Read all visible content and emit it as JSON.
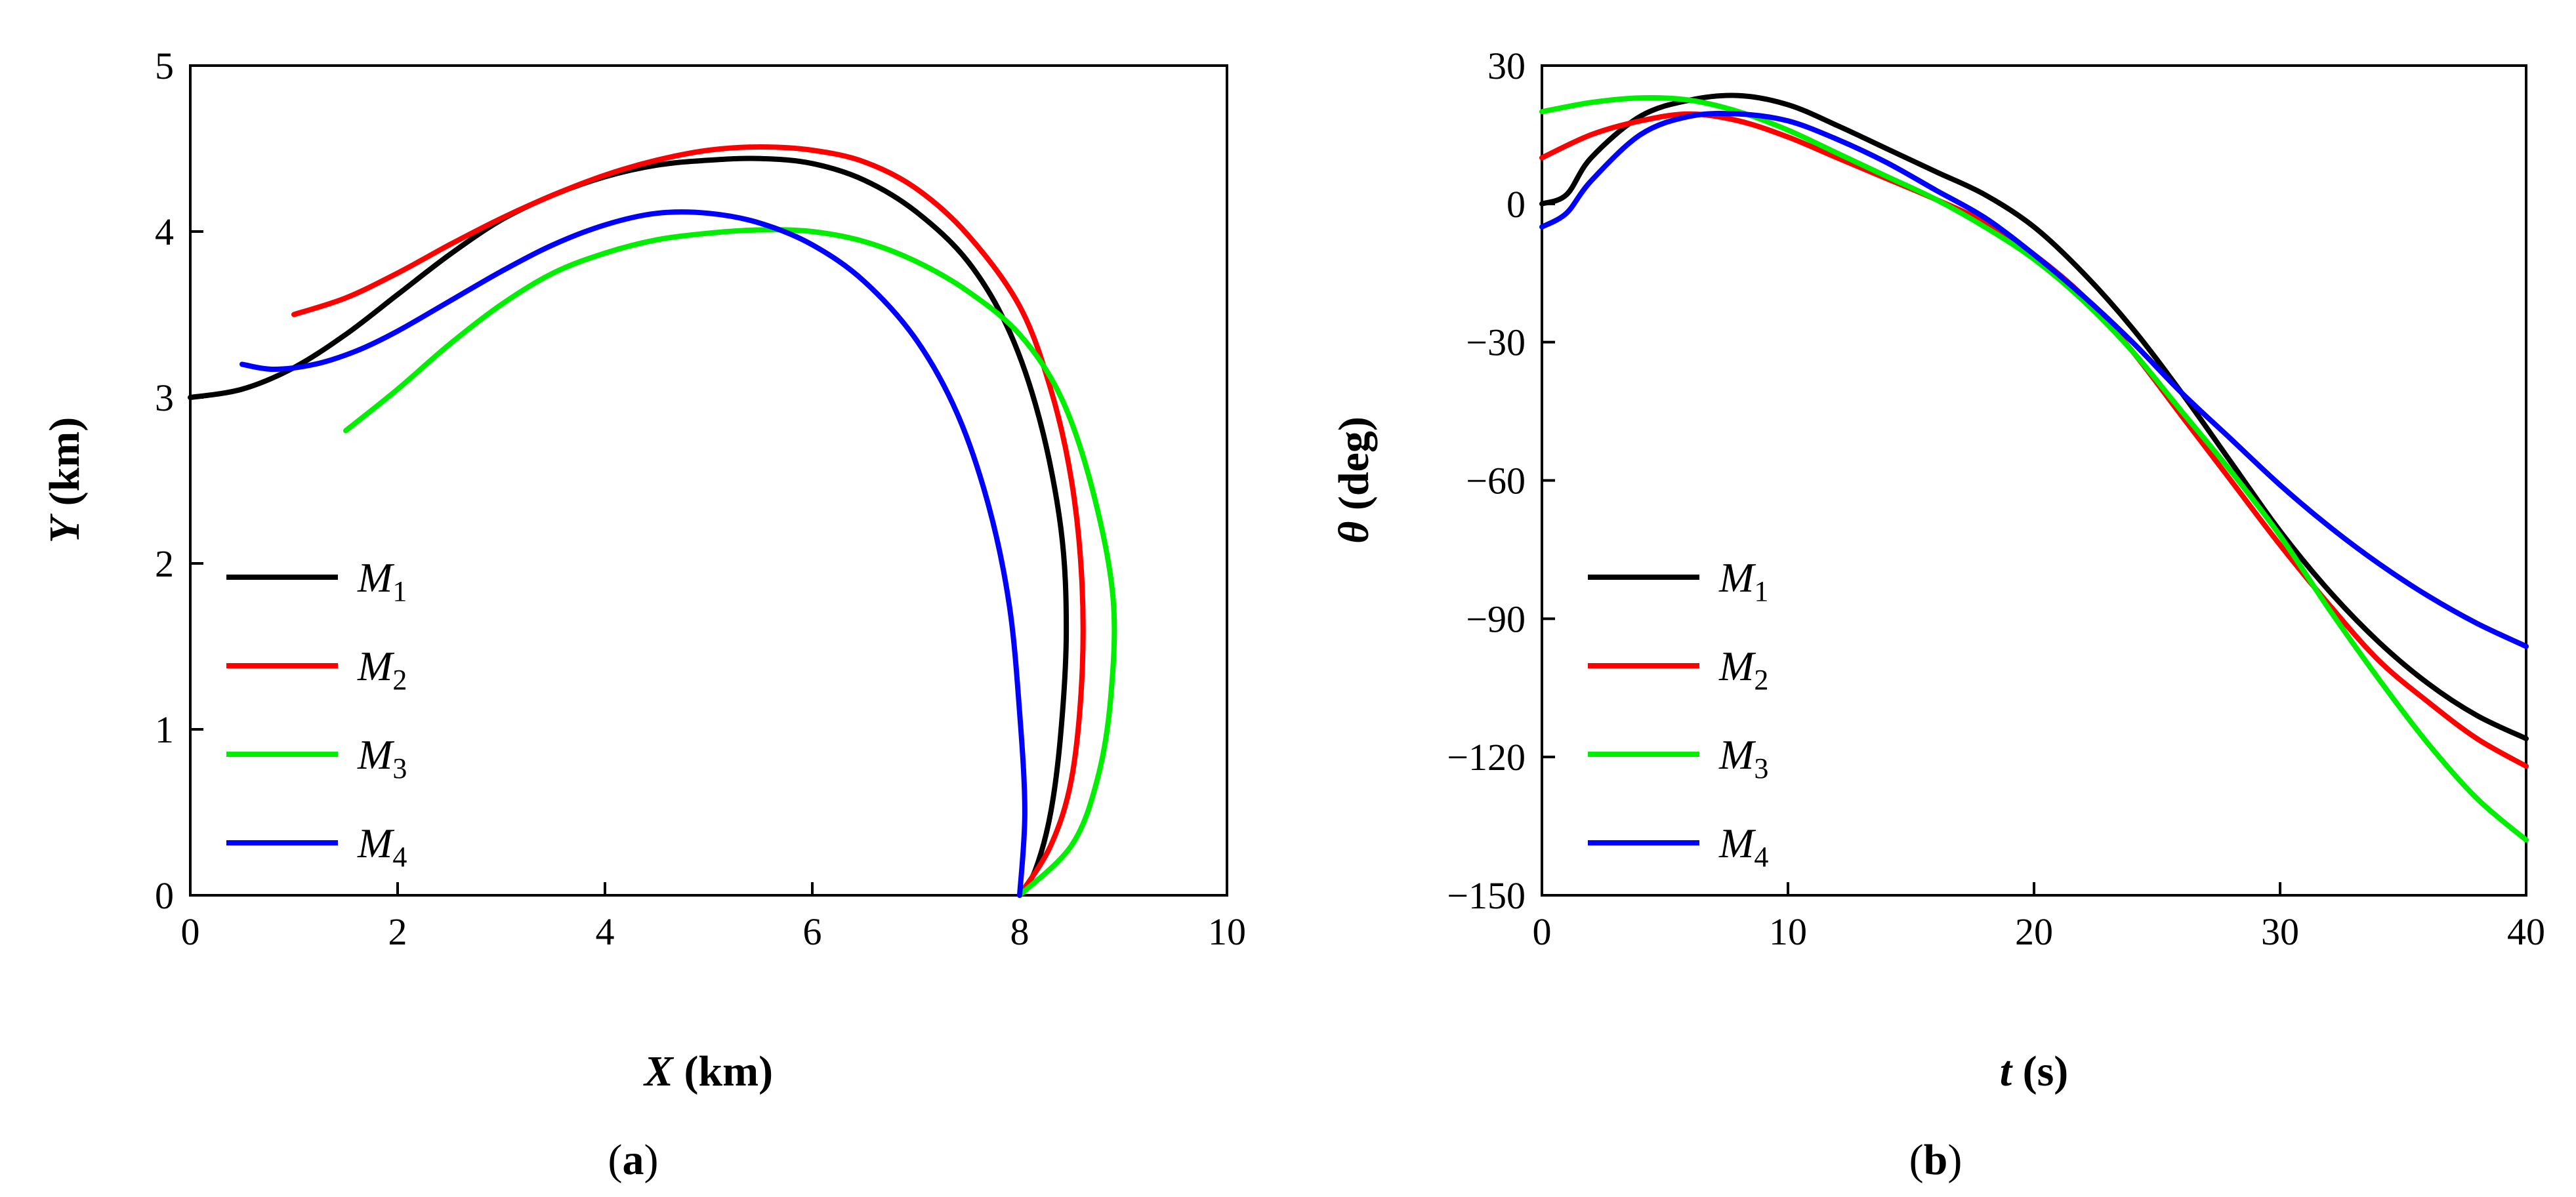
{
  "chart_data": [
    {
      "type": "line",
      "panel_label": "a",
      "xlabel": {
        "var": "X",
        "unit": " (km)"
      },
      "ylabel": {
        "var": "Y",
        "unit": " (km)"
      },
      "xlim": [
        0,
        10
      ],
      "ylim": [
        0,
        5
      ],
      "xticks": [
        0,
        2,
        4,
        6,
        8,
        10
      ],
      "yticks": [
        0,
        1,
        2,
        3,
        4,
        5
      ],
      "grid": false,
      "legend_position": "lower-left",
      "series": [
        {
          "name": "M",
          "sub": "1",
          "color": "#000000",
          "points": [
            [
              0,
              3.0
            ],
            [
              0.5,
              3.05
            ],
            [
              1.0,
              3.18
            ],
            [
              1.5,
              3.38
            ],
            [
              2.0,
              3.62
            ],
            [
              2.5,
              3.86
            ],
            [
              3.0,
              4.07
            ],
            [
              3.5,
              4.22
            ],
            [
              4.0,
              4.33
            ],
            [
              4.5,
              4.4
            ],
            [
              5.0,
              4.43
            ],
            [
              5.5,
              4.44
            ],
            [
              6.0,
              4.41
            ],
            [
              6.5,
              4.31
            ],
            [
              7.0,
              4.12
            ],
            [
              7.5,
              3.82
            ],
            [
              7.9,
              3.4
            ],
            [
              8.2,
              2.85
            ],
            [
              8.4,
              2.2
            ],
            [
              8.45,
              1.6
            ],
            [
              8.4,
              1.0
            ],
            [
              8.3,
              0.5
            ],
            [
              8.15,
              0.15
            ],
            [
              8.0,
              0.0
            ]
          ]
        },
        {
          "name": "M",
          "sub": "2",
          "color": "#ff0000",
          "points": [
            [
              1.0,
              3.5
            ],
            [
              1.5,
              3.6
            ],
            [
              2.0,
              3.75
            ],
            [
              2.5,
              3.92
            ],
            [
              3.0,
              4.08
            ],
            [
              3.5,
              4.22
            ],
            [
              4.0,
              4.34
            ],
            [
              4.5,
              4.43
            ],
            [
              5.0,
              4.49
            ],
            [
              5.5,
              4.51
            ],
            [
              6.0,
              4.49
            ],
            [
              6.5,
              4.42
            ],
            [
              7.0,
              4.26
            ],
            [
              7.5,
              3.98
            ],
            [
              8.0,
              3.55
            ],
            [
              8.3,
              3.05
            ],
            [
              8.5,
              2.5
            ],
            [
              8.6,
              1.9
            ],
            [
              8.6,
              1.3
            ],
            [
              8.5,
              0.7
            ],
            [
              8.3,
              0.3
            ],
            [
              8.0,
              0.0
            ]
          ]
        },
        {
          "name": "M",
          "sub": "3",
          "color": "#00ee00",
          "points": [
            [
              1.5,
              2.8
            ],
            [
              2.0,
              3.05
            ],
            [
              2.5,
              3.32
            ],
            [
              3.0,
              3.56
            ],
            [
              3.5,
              3.75
            ],
            [
              4.0,
              3.87
            ],
            [
              4.5,
              3.95
            ],
            [
              5.0,
              3.99
            ],
            [
              5.5,
              4.01
            ],
            [
              6.0,
              4.0
            ],
            [
              6.5,
              3.94
            ],
            [
              7.0,
              3.82
            ],
            [
              7.5,
              3.64
            ],
            [
              8.0,
              3.38
            ],
            [
              8.4,
              3.0
            ],
            [
              8.7,
              2.45
            ],
            [
              8.9,
              1.8
            ],
            [
              8.88,
              1.2
            ],
            [
              8.75,
              0.7
            ],
            [
              8.5,
              0.3
            ],
            [
              8.0,
              0.0
            ]
          ]
        },
        {
          "name": "M",
          "sub": "4",
          "color": "#0000ff",
          "points": [
            [
              0.5,
              3.2
            ],
            [
              0.8,
              3.17
            ],
            [
              1.2,
              3.2
            ],
            [
              1.6,
              3.28
            ],
            [
              2.0,
              3.4
            ],
            [
              2.5,
              3.58
            ],
            [
              3.0,
              3.76
            ],
            [
              3.5,
              3.92
            ],
            [
              4.0,
              4.04
            ],
            [
              4.5,
              4.11
            ],
            [
              5.0,
              4.11
            ],
            [
              5.5,
              4.05
            ],
            [
              6.0,
              3.92
            ],
            [
              6.5,
              3.7
            ],
            [
              7.0,
              3.35
            ],
            [
              7.4,
              2.9
            ],
            [
              7.7,
              2.35
            ],
            [
              7.9,
              1.75
            ],
            [
              8.0,
              1.1
            ],
            [
              8.05,
              0.5
            ],
            [
              8.0,
              0.0
            ]
          ]
        }
      ]
    },
    {
      "type": "line",
      "panel_label": "b",
      "xlabel": {
        "var": "t",
        "unit": " (s)"
      },
      "ylabel": {
        "var": "θ",
        "unit": " (deg)"
      },
      "xlim": [
        0,
        40
      ],
      "ylim": [
        -150,
        30
      ],
      "xticks": [
        0,
        10,
        20,
        30,
        40
      ],
      "yticks": [
        30,
        0,
        -30,
        -60,
        -90,
        -120,
        -150
      ],
      "ytick_labels": [
        "30",
        "0",
        "−30",
        "−60",
        "−90",
        "−120",
        "−150"
      ],
      "grid": false,
      "legend_position": "lower-left",
      "series": [
        {
          "name": "M",
          "sub": "1",
          "color": "#000000",
          "points": [
            [
              0,
              0
            ],
            [
              1,
              2
            ],
            [
              2,
              10
            ],
            [
              4,
              19
            ],
            [
              6,
              22.5
            ],
            [
              8,
              23.5
            ],
            [
              10,
              21.5
            ],
            [
              12,
              17
            ],
            [
              14,
              12
            ],
            [
              16,
              7
            ],
            [
              18,
              2
            ],
            [
              20,
              -5
            ],
            [
              22,
              -15
            ],
            [
              24,
              -27
            ],
            [
              26,
              -41
            ],
            [
              28,
              -56
            ],
            [
              30,
              -71
            ],
            [
              32,
              -84
            ],
            [
              34,
              -95
            ],
            [
              36,
              -104
            ],
            [
              38,
              -111
            ],
            [
              40,
              -116
            ]
          ]
        },
        {
          "name": "M",
          "sub": "2",
          "color": "#ff0000",
          "points": [
            [
              0,
              10
            ],
            [
              2,
              15
            ],
            [
              4,
              18
            ],
            [
              6,
              19.5
            ],
            [
              8,
              18
            ],
            [
              10,
              14.5
            ],
            [
              12,
              10
            ],
            [
              14,
              5.5
            ],
            [
              16,
              1
            ],
            [
              18,
              -4
            ],
            [
              20,
              -11
            ],
            [
              22,
              -20
            ],
            [
              24,
              -32
            ],
            [
              26,
              -46
            ],
            [
              28,
              -60
            ],
            [
              30,
              -74
            ],
            [
              32,
              -87
            ],
            [
              34,
              -99
            ],
            [
              36,
              -108
            ],
            [
              38,
              -116
            ],
            [
              40,
              -122
            ]
          ]
        },
        {
          "name": "M",
          "sub": "3",
          "color": "#00ee00",
          "points": [
            [
              0,
              20
            ],
            [
              2,
              22
            ],
            [
              4,
              23
            ],
            [
              6,
              22.5
            ],
            [
              8,
              20
            ],
            [
              10,
              16
            ],
            [
              12,
              11
            ],
            [
              14,
              6
            ],
            [
              16,
              1
            ],
            [
              18,
              -5
            ],
            [
              20,
              -12
            ],
            [
              22,
              -21
            ],
            [
              24,
              -32
            ],
            [
              26,
              -45
            ],
            [
              28,
              -58
            ],
            [
              30,
              -72
            ],
            [
              32,
              -88
            ],
            [
              34,
              -103
            ],
            [
              36,
              -117
            ],
            [
              38,
              -129
            ],
            [
              40,
              -138
            ]
          ]
        },
        {
          "name": "M",
          "sub": "4",
          "color": "#0000ff",
          "points": [
            [
              0,
              -5
            ],
            [
              1,
              -2
            ],
            [
              2,
              5
            ],
            [
              4,
              15
            ],
            [
              6,
              19
            ],
            [
              8,
              19.5
            ],
            [
              10,
              18
            ],
            [
              12,
              14
            ],
            [
              14,
              9
            ],
            [
              16,
              3
            ],
            [
              18,
              -3
            ],
            [
              20,
              -11
            ],
            [
              22,
              -20
            ],
            [
              24,
              -30
            ],
            [
              26,
              -41
            ],
            [
              28,
              -51
            ],
            [
              30,
              -61
            ],
            [
              32,
              -70
            ],
            [
              34,
              -78
            ],
            [
              36,
              -85
            ],
            [
              38,
              -91
            ],
            [
              40,
              -96
            ]
          ]
        }
      ]
    }
  ]
}
